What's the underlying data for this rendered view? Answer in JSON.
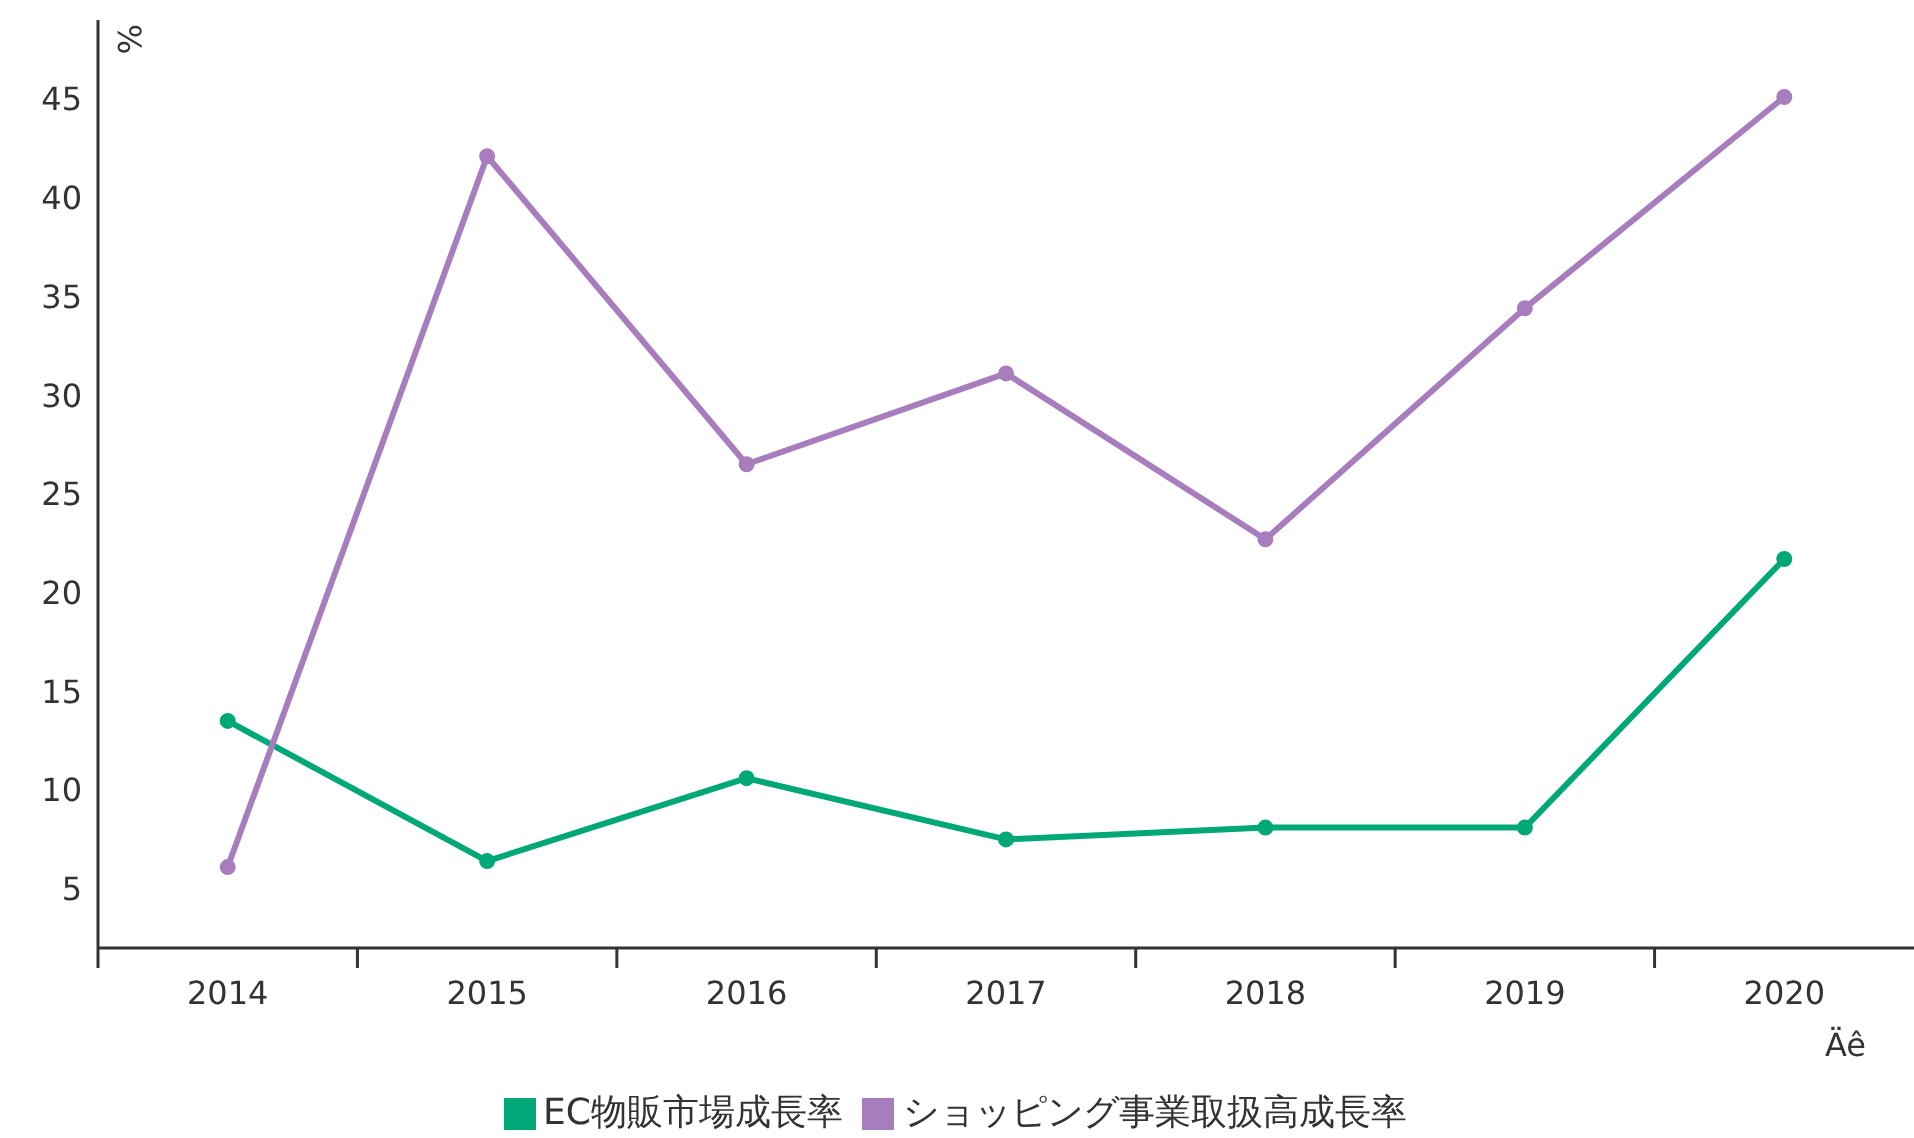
{
  "chart_data": {
    "type": "line",
    "xlabel": "Äê",
    "ylabel": "%",
    "categories": [
      "2014",
      "2015",
      "2016",
      "2017",
      "2018",
      "2019",
      "2020"
    ],
    "series": [
      {
        "name": "EC物販市場成長率",
        "color": "#00a878",
        "values": [
          13.5,
          6.4,
          10.6,
          7.5,
          8.1,
          8.1,
          21.7
        ]
      },
      {
        "name": "ショッピング事業取扱高成長率",
        "color": "#a87dbd",
        "values": [
          6.1,
          42.1,
          26.5,
          31.1,
          22.7,
          34.4,
          45.1
        ]
      }
    ],
    "ylim": [
      2,
      49
    ],
    "yticks": [
      5,
      10,
      15,
      20,
      25,
      30,
      35,
      40,
      45
    ],
    "grid": false,
    "legend": "bottom",
    "marker": "circle",
    "line_style": "solid"
  }
}
